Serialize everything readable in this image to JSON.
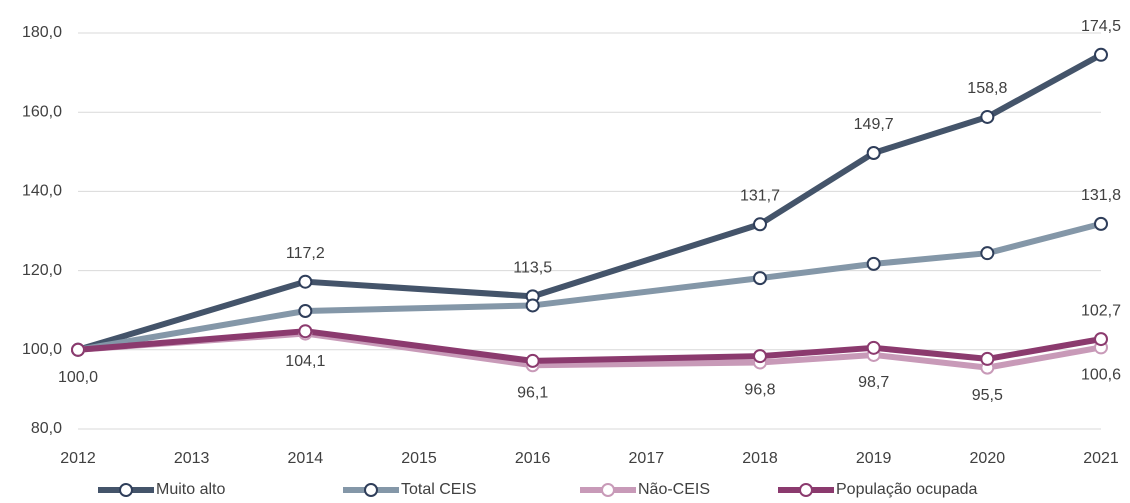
{
  "chart_data": {
    "type": "line",
    "x": [
      2012,
      2014,
      2016,
      2018,
      2019,
      2020,
      2021
    ],
    "xlim": [
      2012,
      2021
    ],
    "xticks": [
      2012,
      2013,
      2014,
      2015,
      2016,
      2017,
      2018,
      2019,
      2020,
      2021
    ],
    "ylim": [
      80,
      180
    ],
    "yticks": [
      {
        "value": 80,
        "label": "80,0"
      },
      {
        "value": 100,
        "label": "100,0"
      },
      {
        "value": 120,
        "label": "120,0"
      },
      {
        "value": 140,
        "label": "140,0"
      },
      {
        "value": 160,
        "label": "160,0"
      },
      {
        "value": 180,
        "label": "180,0"
      }
    ],
    "grid": true,
    "legend": "bottom",
    "series": [
      {
        "name": "Muito alto",
        "color": "#44546a",
        "label_position": "above",
        "values": [
          100,
          117.2,
          113.5,
          131.7,
          149.7,
          158.8,
          174.5
        ],
        "value_labels": [
          null,
          "117,2",
          "113,5",
          "131,7",
          "149,7",
          "158,8",
          "174,5"
        ]
      },
      {
        "name": "Total CEIS",
        "color": "#8497a8",
        "label_position": "above",
        "values": [
          100,
          109.8,
          111.2,
          118.1,
          121.7,
          124.4,
          131.8
        ],
        "value_labels": [
          null,
          null,
          null,
          null,
          null,
          null,
          "131,8"
        ]
      },
      {
        "name": "Não-CEIS",
        "color": "#c89ab8",
        "label_position": "below",
        "values": [
          100,
          104.1,
          96.1,
          96.8,
          98.7,
          95.5,
          100.6
        ],
        "value_labels": [
          "100,0",
          "104,1",
          "96,1",
          "96,8",
          "98,7",
          "95,5",
          "100,6"
        ]
      },
      {
        "name": "População ocupada",
        "color": "#8b3a6e",
        "label_position": "above",
        "values": [
          100,
          104.7,
          97.2,
          98.4,
          100.5,
          97.7,
          102.7
        ],
        "value_labels": [
          null,
          null,
          null,
          null,
          null,
          null,
          "102,7"
        ]
      }
    ]
  }
}
